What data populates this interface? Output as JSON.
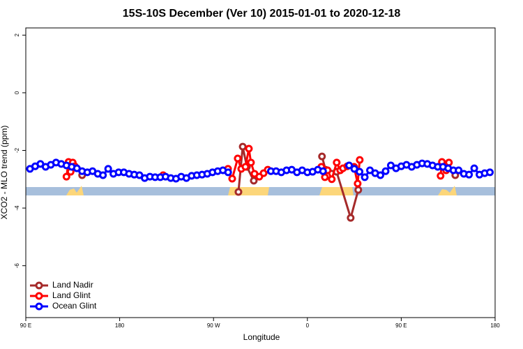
{
  "chart_data": {
    "type": "line",
    "title": "15S-10S December (Ver 10)   2015-01-01 to 2020-12-18",
    "x_label": "Longitude",
    "y_label": "XCO2 - MLO trend (ppm)",
    "xlim": [
      90,
      540
    ],
    "ylim": [
      -7.8,
      2.25
    ],
    "xticks": [
      {
        "value": 90,
        "label": "90 E"
      },
      180,
      {
        "value": 270,
        "label": "90 W"
      },
      {
        "value": 360,
        "label": "0"
      },
      {
        "value": 450,
        "label": "90 E"
      },
      {
        "value": 540,
        "label": "180"
      }
    ],
    "yticks": [
      2,
      0,
      -2,
      -4,
      -6
    ],
    "legend": "bottom-left",
    "series": [
      {
        "name": "Land Nadir",
        "color": "#a52a2a",
        "x": [
          144,
          220,
          293.9,
          298,
          302,
          308.6,
          340,
          374,
          377.4,
          388,
          401.5,
          408.8,
          450,
          501.8
        ],
        "values": [
          -2.86,
          null,
          -3.44,
          -1.87,
          -2.57,
          -3.05,
          null,
          -2.21,
          -2.67,
          -2.74,
          -4.34,
          -3.37,
          null,
          -2.86
        ]
      },
      {
        "name": "Land Glint",
        "color": "#ff0000",
        "x": [
          129,
          131,
          133,
          135,
          137,
          180,
          221.7,
          250,
          283.9,
          287.9,
          293.2,
          296.6,
          300.6,
          303.9,
          305.9,
          309.3,
          313.9,
          318,
          322,
          350,
          373.4,
          376.8,
          379.4,
          383.4,
          388.1,
          391.5,
          394.1,
          398.2,
          404.8,
          408.2,
          410.2,
          450,
          487.7,
          489,
          493,
          495.7
        ],
        "values": [
          -2.91,
          -2.4,
          -2.74,
          -2.42,
          -2.55,
          null,
          -2.86,
          null,
          -2.64,
          -2.98,
          -2.28,
          -2.64,
          -2.57,
          -1.94,
          -2.42,
          -2.81,
          -2.91,
          -2.79,
          -2.67,
          null,
          -2.57,
          -2.93,
          -2.69,
          -3.0,
          -2.42,
          -2.69,
          -2.62,
          -2.55,
          -2.57,
          -3.15,
          -2.33,
          null,
          -2.88,
          -2.4,
          -2.69,
          -2.42
        ]
      },
      {
        "name": "Ocean Glint",
        "color": "#0000ff",
        "x": [
          94,
          99,
          104,
          109,
          114,
          119,
          124,
          129,
          134,
          139,
          144,
          149,
          154,
          159,
          164,
          169,
          174,
          179,
          184,
          189,
          194,
          199,
          204,
          209,
          214,
          219,
          224,
          229,
          234,
          239,
          244,
          249,
          254,
          259,
          264,
          269,
          274,
          279,
          284,
          305,
          325,
          330,
          335,
          340,
          345,
          350,
          355,
          360,
          365,
          370,
          375,
          390,
          400,
          405,
          410,
          415,
          420,
          425,
          430,
          435,
          440,
          445,
          450,
          455,
          460,
          465,
          470,
          475,
          480,
          485,
          490,
          495,
          500,
          505,
          510,
          515,
          520,
          525,
          530,
          535
        ],
        "values": [
          -2.64,
          -2.55,
          -2.47,
          -2.57,
          -2.5,
          -2.42,
          -2.47,
          -2.52,
          -2.57,
          -2.62,
          -2.72,
          -2.76,
          -2.72,
          -2.81,
          -2.86,
          -2.64,
          -2.81,
          -2.76,
          -2.76,
          -2.81,
          -2.84,
          -2.86,
          -2.96,
          -2.91,
          -2.93,
          -2.93,
          -2.91,
          -2.96,
          -2.98,
          -2.91,
          -2.96,
          -2.88,
          -2.86,
          -2.84,
          -2.81,
          -2.76,
          -2.72,
          -2.69,
          -2.76,
          null,
          -2.72,
          -2.72,
          -2.76,
          -2.69,
          -2.67,
          -2.76,
          -2.69,
          -2.76,
          -2.74,
          -2.67,
          -2.72,
          null,
          -2.52,
          -2.64,
          -2.74,
          -2.93,
          -2.69,
          -2.79,
          -2.86,
          -2.72,
          -2.52,
          -2.62,
          -2.55,
          -2.5,
          -2.57,
          -2.5,
          -2.45,
          -2.47,
          -2.52,
          -2.57,
          -2.57,
          -2.62,
          -2.69,
          -2.69,
          -2.81,
          -2.84,
          -2.62,
          -2.84,
          -2.79,
          -2.76
        ]
      }
    ]
  }
}
